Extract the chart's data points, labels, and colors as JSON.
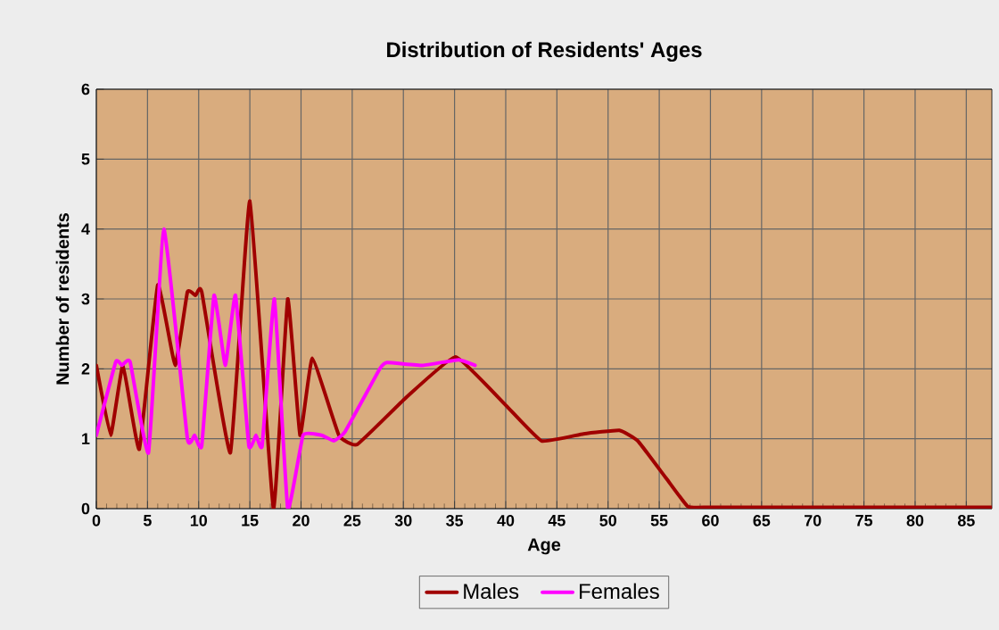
{
  "chart_data": {
    "type": "line",
    "title": "Distribution of Residents' Ages",
    "xlabel": "Age",
    "ylabel": "Number of residents",
    "xlim": [
      0,
      87.5
    ],
    "xticks": [
      0,
      5,
      10,
      15,
      20,
      25,
      30,
      35,
      40,
      45,
      50,
      55,
      60,
      65,
      70,
      75,
      80,
      85
    ],
    "ylim": [
      0,
      6
    ],
    "yticks": [
      0,
      1,
      2,
      3,
      4,
      5,
      6
    ],
    "grid": true,
    "legend": "bottom",
    "marker": "none",
    "line_style": "solid",
    "series": [
      {
        "name": "Males",
        "color": "#a00000",
        "x": [
          0,
          1.4,
          2.6,
          4.2,
          6,
          7.7,
          8.9,
          9.7,
          10.3,
          13.1,
          15,
          17.3,
          18.7,
          19.9,
          21.1,
          23.7,
          25.5,
          30.2,
          35.1,
          40,
          43.5,
          47.6,
          51.1,
          52.9,
          55.7,
          57.8,
          60,
          70,
          80,
          87.5
        ],
        "values": [
          2.05,
          1.05,
          2.05,
          0.85,
          3.2,
          2.05,
          3.1,
          3.05,
          3.1,
          0.8,
          4.4,
          0,
          3,
          1.05,
          2.15,
          1.05,
          0.92,
          1.58,
          2.17,
          1.48,
          0.97,
          1.07,
          1.12,
          0.97,
          0.43,
          0.03,
          0.02,
          0.02,
          0.02,
          0.02
        ]
      },
      {
        "name": "Females",
        "color": "#ff00ff",
        "x": [
          0,
          1.9,
          2.5,
          3.3,
          5.1,
          6.6,
          8.9,
          9.6,
          10.3,
          11.5,
          12.6,
          13.6,
          14.9,
          15.6,
          16.2,
          17.4,
          18.7,
          20.2,
          22,
          23.2,
          24.3,
          27.7,
          28.4,
          31.9,
          35.4,
          37
        ],
        "values": [
          1.05,
          2.1,
          2.05,
          2.1,
          0.8,
          4,
          1,
          1.05,
          0.9,
          3.05,
          2.05,
          3.05,
          0.9,
          1.05,
          0.9,
          3,
          0,
          1.05,
          1.05,
          0.97,
          1.1,
          2,
          2.09,
          2.05,
          2.13,
          2.05
        ]
      }
    ]
  }
}
